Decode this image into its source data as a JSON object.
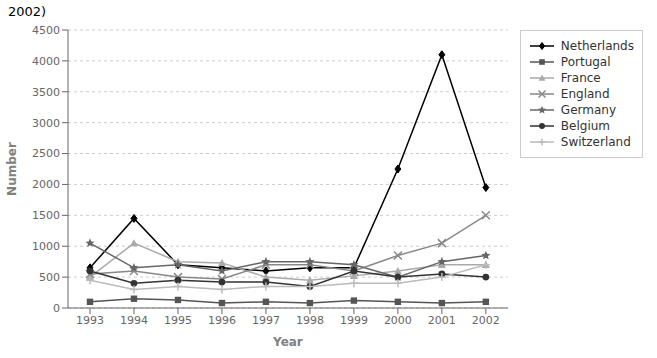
{
  "chart_data": {
    "type": "line",
    "title": "2002)",
    "x": [
      1993,
      1994,
      1995,
      1996,
      1997,
      1998,
      1999,
      2000,
      2001,
      2002
    ],
    "xlabel": "Year",
    "ylabel": "Number",
    "xlim": [
      1992.5,
      2002.5
    ],
    "xticks": [
      1993,
      1994,
      1995,
      1996,
      1997,
      1998,
      1999,
      2000,
      2001,
      2002
    ],
    "ylim": [
      0,
      4500
    ],
    "yticks": [
      0,
      500,
      1000,
      1500,
      2000,
      2500,
      3000,
      3500,
      4000,
      4500
    ],
    "grid": true,
    "legend": "right",
    "series": [
      {
        "name": "Netherlands",
        "color": "#000000",
        "marker": "diamond",
        "line_style": "solid",
        "values": [
          650,
          1450,
          700,
          650,
          600,
          650,
          650,
          2250,
          4100,
          1950
        ]
      },
      {
        "name": "Portugal",
        "color": "#555555",
        "marker": "square",
        "line_style": "solid",
        "values": [
          100,
          150,
          130,
          80,
          100,
          80,
          120,
          100,
          80,
          100
        ]
      },
      {
        "name": "France",
        "color": "#aaaaaa",
        "marker": "triangle",
        "line_style": "solid",
        "values": [
          500,
          1050,
          750,
          730,
          500,
          450,
          520,
          600,
          700,
          700
        ]
      },
      {
        "name": "England",
        "color": "#888888",
        "marker": "x",
        "line_style": "solid",
        "values": [
          550,
          600,
          500,
          470,
          700,
          700,
          600,
          850,
          1050,
          1500
        ]
      },
      {
        "name": "Germany",
        "color": "#666666",
        "marker": "star",
        "line_style": "solid",
        "values": [
          1050,
          650,
          700,
          600,
          750,
          750,
          700,
          500,
          750,
          850
        ]
      },
      {
        "name": "Belgium",
        "color": "#333333",
        "marker": "circle",
        "line_style": "solid",
        "values": [
          600,
          400,
          450,
          420,
          420,
          350,
          600,
          500,
          550,
          500
        ]
      },
      {
        "name": "Switzerland",
        "color": "#bbbbbb",
        "marker": "plus",
        "line_style": "solid",
        "values": [
          450,
          300,
          350,
          300,
          350,
          350,
          400,
          400,
          500,
          700
        ]
      }
    ]
  }
}
